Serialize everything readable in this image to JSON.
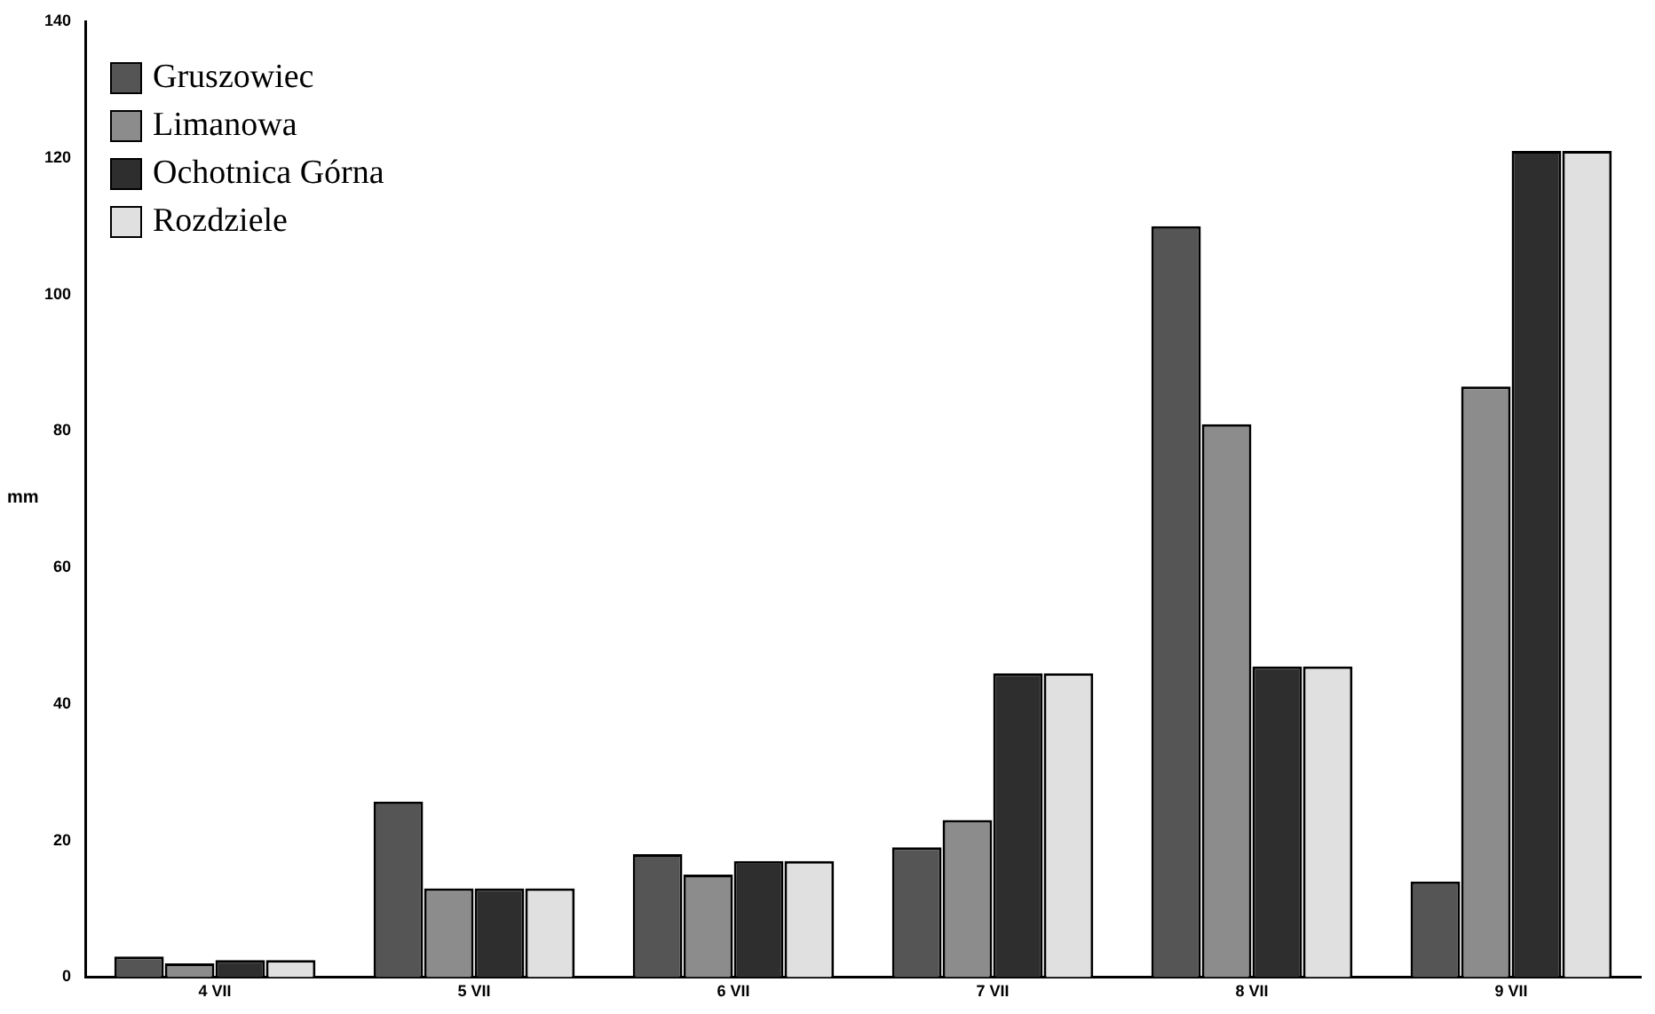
{
  "chart_data": {
    "type": "bar",
    "ylabel": "mm",
    "categories": [
      "4 VII",
      "5 VII",
      "6 VII",
      "7 VII",
      "8 VII",
      "9 VII"
    ],
    "series": [
      {
        "name": "Gruszowiec",
        "color": "#555555",
        "values": [
          3,
          25.7,
          18,
          19,
          110,
          14
        ]
      },
      {
        "name": "Limanowa",
        "color": "#8c8c8c",
        "values": [
          2,
          13,
          15,
          23,
          81,
          86.5
        ]
      },
      {
        "name": "Ochotnica Górna",
        "color": "#2e2e2e",
        "values": [
          2.5,
          13,
          17,
          44.5,
          45.5,
          121
        ]
      },
      {
        "name": "Rozdziele",
        "color": "#e0e0e0",
        "values": [
          2.5,
          13,
          17,
          44.5,
          45.5,
          121
        ]
      }
    ],
    "ylim": [
      0,
      140
    ],
    "yticks": [
      0,
      20,
      40,
      60,
      80,
      100,
      120,
      140
    ],
    "grid": false,
    "legend": "top left"
  }
}
